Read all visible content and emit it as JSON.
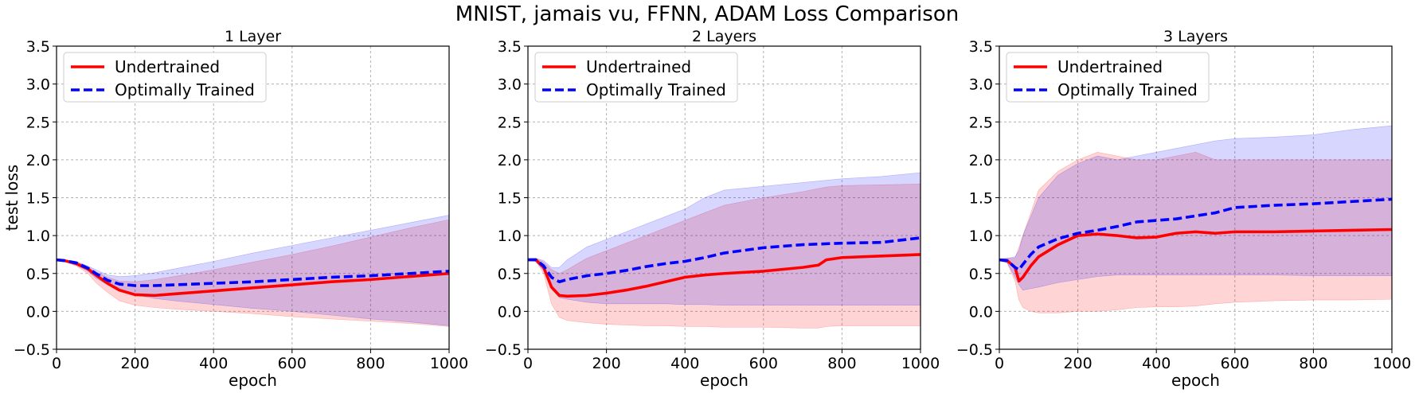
{
  "figure_title": "MNIST, jamais vu, FFNN, ADAM Loss Comparison",
  "chart_data": [
    {
      "type": "line",
      "title": "1 Layer",
      "xlabel": "epoch",
      "ylabel": "test loss",
      "xlim": [
        0,
        1000
      ],
      "ylim": [
        -0.5,
        3.5
      ],
      "xticks": [
        "0",
        "200",
        "400",
        "600",
        "800",
        "1000"
      ],
      "yticks": [
        "−0.5",
        "0.0",
        "0.5",
        "1.0",
        "1.5",
        "2.0",
        "2.5",
        "3.0",
        "3.5"
      ],
      "grid": true,
      "legend": "top-left",
      "series": [
        {
          "name": "Undertrained",
          "color": "#ff0000",
          "style": "solid",
          "x": [
            0,
            20,
            50,
            80,
            100,
            130,
            160,
            200,
            250,
            300,
            400,
            500,
            600,
            700,
            800,
            900,
            1000
          ],
          "mean": [
            0.68,
            0.67,
            0.63,
            0.56,
            0.48,
            0.37,
            0.28,
            0.22,
            0.21,
            0.23,
            0.27,
            0.31,
            0.35,
            0.39,
            0.42,
            0.46,
            0.5
          ],
          "upper": [
            0.69,
            0.68,
            0.65,
            0.59,
            0.52,
            0.45,
            0.4,
            0.39,
            0.42,
            0.46,
            0.55,
            0.65,
            0.75,
            0.86,
            0.98,
            1.1,
            1.21
          ],
          "lower": [
            0.67,
            0.66,
            0.6,
            0.5,
            0.38,
            0.25,
            0.14,
            0.08,
            0.05,
            0.03,
            0.0,
            -0.03,
            -0.07,
            -0.1,
            -0.13,
            -0.16,
            -0.2
          ]
        },
        {
          "name": "Optimally Trained",
          "color": "#0000ff",
          "style": "dashed",
          "x": [
            0,
            20,
            50,
            80,
            100,
            130,
            160,
            200,
            250,
            300,
            400,
            500,
            600,
            700,
            800,
            900,
            1000
          ],
          "mean": [
            0.68,
            0.67,
            0.64,
            0.57,
            0.5,
            0.41,
            0.36,
            0.34,
            0.34,
            0.35,
            0.37,
            0.39,
            0.42,
            0.45,
            0.47,
            0.5,
            0.53
          ],
          "upper": [
            0.69,
            0.68,
            0.66,
            0.6,
            0.55,
            0.48,
            0.46,
            0.47,
            0.51,
            0.56,
            0.66,
            0.77,
            0.87,
            0.97,
            1.07,
            1.17,
            1.27
          ],
          "lower": [
            0.67,
            0.66,
            0.61,
            0.53,
            0.44,
            0.35,
            0.27,
            0.22,
            0.17,
            0.14,
            0.09,
            0.04,
            0.0,
            -0.05,
            -0.1,
            -0.14,
            -0.19
          ]
        }
      ]
    },
    {
      "type": "line",
      "title": "2 Layers",
      "xlabel": "epoch",
      "ylabel": "",
      "xlim": [
        0,
        1000
      ],
      "ylim": [
        -0.5,
        3.5
      ],
      "xticks": [
        "0",
        "200",
        "400",
        "600",
        "800",
        "1000"
      ],
      "yticks": [
        "−0.5",
        "0.0",
        "0.5",
        "1.0",
        "1.5",
        "2.0",
        "2.5",
        "3.0",
        "3.5"
      ],
      "grid": true,
      "legend": "top-left",
      "series": [
        {
          "name": "Undertrained",
          "color": "#ff0000",
          "style": "solid",
          "x": [
            0,
            20,
            40,
            60,
            80,
            100,
            150,
            200,
            250,
            300,
            350,
            400,
            450,
            500,
            600,
            700,
            740,
            760,
            800,
            900,
            1000
          ],
          "mean": [
            0.68,
            0.68,
            0.58,
            0.32,
            0.21,
            0.2,
            0.21,
            0.24,
            0.28,
            0.33,
            0.39,
            0.45,
            0.48,
            0.5,
            0.53,
            0.58,
            0.61,
            0.68,
            0.71,
            0.73,
            0.75
          ],
          "upper": [
            0.69,
            0.7,
            0.65,
            0.55,
            0.5,
            0.55,
            0.7,
            0.8,
            0.9,
            1.0,
            1.1,
            1.2,
            1.3,
            1.4,
            1.5,
            1.58,
            1.62,
            1.64,
            1.66,
            1.67,
            1.68
          ],
          "lower": [
            0.67,
            0.66,
            0.5,
            0.1,
            -0.08,
            -0.12,
            -0.15,
            -0.17,
            -0.18,
            -0.19,
            -0.19,
            -0.2,
            -0.2,
            -0.21,
            -0.21,
            -0.22,
            -0.22,
            -0.2,
            -0.19,
            -0.19,
            -0.19
          ]
        },
        {
          "name": "Optimally Trained",
          "color": "#0000ff",
          "style": "dashed",
          "x": [
            0,
            20,
            40,
            60,
            80,
            100,
            150,
            200,
            250,
            300,
            350,
            400,
            450,
            500,
            600,
            700,
            800,
            900,
            1000
          ],
          "mean": [
            0.68,
            0.68,
            0.6,
            0.45,
            0.39,
            0.42,
            0.47,
            0.5,
            0.54,
            0.59,
            0.63,
            0.66,
            0.71,
            0.77,
            0.84,
            0.88,
            0.9,
            0.91,
            0.97
          ],
          "upper": [
            0.69,
            0.7,
            0.67,
            0.58,
            0.58,
            0.68,
            0.85,
            0.95,
            1.05,
            1.15,
            1.25,
            1.35,
            1.5,
            1.6,
            1.65,
            1.7,
            1.75,
            1.78,
            1.83
          ],
          "lower": [
            0.67,
            0.66,
            0.54,
            0.3,
            0.18,
            0.16,
            0.12,
            0.1,
            0.1,
            0.1,
            0.1,
            0.09,
            0.09,
            0.08,
            0.08,
            0.08,
            0.08,
            0.08,
            0.08
          ]
        }
      ]
    },
    {
      "type": "line",
      "title": "3 Layers",
      "xlabel": "epoch",
      "ylabel": "",
      "xlim": [
        0,
        1000
      ],
      "ylim": [
        -0.5,
        3.5
      ],
      "xticks": [
        "0",
        "200",
        "400",
        "600",
        "800",
        "1000"
      ],
      "yticks": [
        "−0.5",
        "0.0",
        "0.5",
        "1.0",
        "1.5",
        "2.0",
        "2.5",
        "3.0",
        "3.5"
      ],
      "grid": true,
      "legend": "top-left",
      "series": [
        {
          "name": "Undertrained",
          "color": "#ff0000",
          "style": "solid",
          "x": [
            0,
            20,
            40,
            50,
            60,
            80,
            100,
            150,
            200,
            250,
            300,
            350,
            400,
            450,
            500,
            550,
            600,
            700,
            800,
            900,
            1000
          ],
          "mean": [
            0.68,
            0.67,
            0.58,
            0.4,
            0.45,
            0.6,
            0.72,
            0.88,
            1.0,
            1.02,
            1.0,
            0.97,
            0.98,
            1.03,
            1.05,
            1.03,
            1.05,
            1.05,
            1.06,
            1.07,
            1.08
          ],
          "upper": [
            0.69,
            0.7,
            0.7,
            0.85,
            1.0,
            1.3,
            1.6,
            1.85,
            2.0,
            2.1,
            2.05,
            2.0,
            2.0,
            2.05,
            2.1,
            2.0,
            2.0,
            2.0,
            2.0,
            2.0,
            2.0
          ],
          "lower": [
            0.67,
            0.64,
            0.4,
            0.15,
            0.05,
            0.0,
            -0.02,
            -0.02,
            0.0,
            0.0,
            0.02,
            0.05,
            0.06,
            0.06,
            0.07,
            0.1,
            0.12,
            0.14,
            0.15,
            0.15,
            0.16
          ]
        },
        {
          "name": "Optimally Trained",
          "color": "#0000ff",
          "style": "dashed",
          "x": [
            0,
            20,
            40,
            50,
            60,
            80,
            100,
            150,
            200,
            250,
            300,
            350,
            400,
            450,
            500,
            550,
            600,
            700,
            800,
            900,
            1000
          ],
          "mean": [
            0.68,
            0.67,
            0.58,
            0.55,
            0.62,
            0.75,
            0.85,
            0.96,
            1.03,
            1.07,
            1.12,
            1.18,
            1.2,
            1.22,
            1.26,
            1.3,
            1.37,
            1.4,
            1.42,
            1.45,
            1.48
          ],
          "upper": [
            0.69,
            0.7,
            0.72,
            0.8,
            1.0,
            1.25,
            1.5,
            1.8,
            1.95,
            2.05,
            2.0,
            2.05,
            2.1,
            2.15,
            2.2,
            2.25,
            2.28,
            2.3,
            2.33,
            2.4,
            2.45
          ],
          "lower": [
            0.67,
            0.64,
            0.45,
            0.35,
            0.28,
            0.3,
            0.32,
            0.38,
            0.42,
            0.46,
            0.48,
            0.48,
            0.48,
            0.48,
            0.48,
            0.48,
            0.48,
            0.48,
            0.47,
            0.47,
            0.47
          ]
        }
      ]
    }
  ]
}
